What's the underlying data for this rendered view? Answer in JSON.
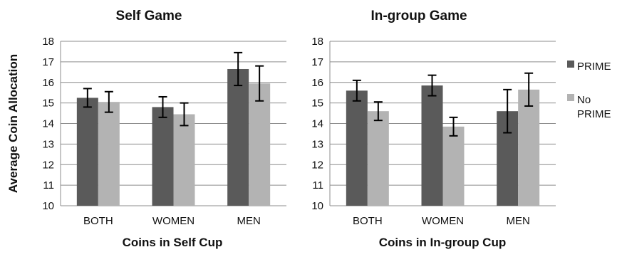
{
  "chart_data": [
    {
      "type": "bar",
      "title": "Self Game",
      "xlabel": "Coins in Self Cup",
      "ylabel": "Average Coin Allocation",
      "categories": [
        "BOTH",
        "WOMEN",
        "MEN"
      ],
      "ylim": [
        10,
        18
      ],
      "yticks": [
        "10",
        "11",
        "12",
        "13",
        "14",
        "15",
        "16",
        "17",
        "18"
      ],
      "grid": true,
      "series": [
        {
          "name": "PRIME",
          "color": "#5a5a5a",
          "values": [
            15.25,
            14.8,
            16.65
          ],
          "error": [
            0.45,
            0.5,
            0.8
          ]
        },
        {
          "name": "No PRIME",
          "color": "#b3b3b3",
          "values": [
            15.05,
            14.45,
            15.95
          ],
          "error": [
            0.5,
            0.55,
            0.85
          ]
        }
      ]
    },
    {
      "type": "bar",
      "title": "In-group Game",
      "xlabel": "Coins in In-group Cup",
      "ylabel": "",
      "categories": [
        "BOTH",
        "WOMEN",
        "MEN"
      ],
      "ylim": [
        10,
        18
      ],
      "yticks": [
        "10",
        "11",
        "12",
        "13",
        "14",
        "15",
        "16",
        "17",
        "18"
      ],
      "grid": true,
      "series": [
        {
          "name": "PRIME",
          "color": "#5a5a5a",
          "values": [
            15.6,
            15.85,
            14.6
          ],
          "error": [
            0.5,
            0.5,
            1.05
          ]
        },
        {
          "name": "No PRIME",
          "color": "#b3b3b3",
          "values": [
            14.6,
            13.85,
            15.65
          ],
          "error": [
            0.45,
            0.45,
            0.8
          ]
        }
      ]
    }
  ],
  "legend": {
    "placement": "right",
    "items": [
      {
        "label_lines": [
          "PRIME"
        ],
        "color": "#5a5a5a"
      },
      {
        "label_lines": [
          "No",
          "PRIME"
        ],
        "color": "#b3b3b3"
      }
    ]
  }
}
